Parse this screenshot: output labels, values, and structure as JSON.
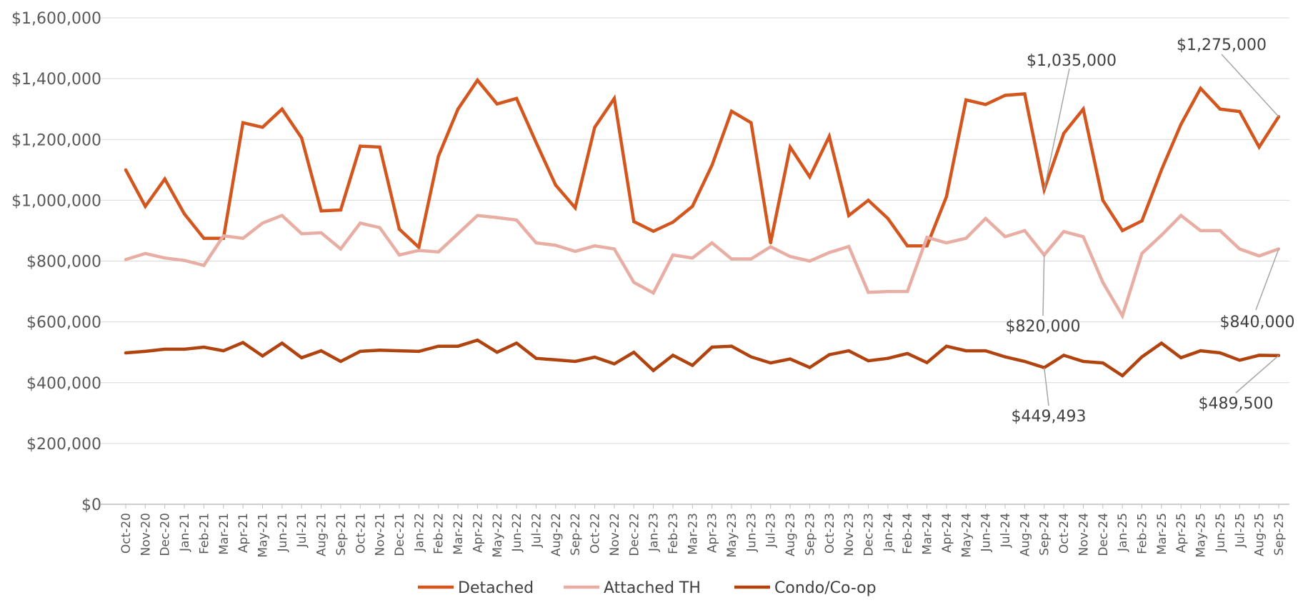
{
  "chart_data": {
    "type": "line",
    "categories": [
      "Oct-20",
      "Nov-20",
      "Dec-20",
      "Jan-21",
      "Feb-21",
      "Mar-21",
      "Apr-21",
      "May-21",
      "Jun-21",
      "Jul-21",
      "Aug-21",
      "Sep-21",
      "Oct-21",
      "Nov-21",
      "Dec-21",
      "Jan-22",
      "Feb-22",
      "Mar-22",
      "Apr-22",
      "May-22",
      "Jun-22",
      "Jul-22",
      "Aug-22",
      "Sep-22",
      "Oct-22",
      "Nov-22",
      "Dec-22",
      "Jan-23",
      "Feb-23",
      "Mar-23",
      "Apr-23",
      "May-23",
      "Jun-23",
      "Jul-23",
      "Aug-23",
      "Sep-23",
      "Oct-23",
      "Nov-23",
      "Dec-23",
      "Jan-24",
      "Feb-24",
      "Mar-24",
      "Apr-24",
      "May-24",
      "Jun-24",
      "Jul-24",
      "Aug-24",
      "Sep-24",
      "Oct-24",
      "Nov-24",
      "Dec-24",
      "Jan-25",
      "Feb-25",
      "Mar-25",
      "Apr-25",
      "May-25",
      "Jun-25",
      "Jul-25",
      "Aug-25",
      "Sep-25"
    ],
    "series": [
      {
        "name": "Detached",
        "color": "#d4561f",
        "values": [
          1100000,
          980000,
          1070000,
          955000,
          875000,
          875000,
          1255000,
          1240000,
          1300000,
          1205000,
          965000,
          968000,
          1178000,
          1175000,
          905000,
          845000,
          1145000,
          1300000,
          1395000,
          1317000,
          1335000,
          1190000,
          1050000,
          975000,
          1240000,
          1335000,
          930000,
          898000,
          928000,
          980000,
          1115000,
          1293000,
          1255000,
          860000,
          1175000,
          1077000,
          1210000,
          950000,
          1000000,
          940000,
          850000,
          850000,
          1012000,
          1330000,
          1315000,
          1345000,
          1350000,
          1035000,
          1220000,
          1300000,
          1000000,
          900000,
          932000,
          1100000,
          1250000,
          1368000,
          1300000,
          1292000,
          1175000,
          1275000
        ]
      },
      {
        "name": "Attached TH",
        "color": "#e8ada3",
        "values": [
          805000,
          825000,
          810000,
          802000,
          786000,
          883000,
          875000,
          925000,
          950000,
          890000,
          893000,
          840000,
          925000,
          910000,
          820000,
          835000,
          830000,
          890000,
          950000,
          943000,
          935000,
          860000,
          852000,
          832000,
          850000,
          840000,
          730000,
          695000,
          820000,
          810000,
          860000,
          807000,
          807000,
          847000,
          815000,
          800000,
          828000,
          848000,
          697000,
          700000,
          700000,
          878000,
          860000,
          875000,
          940000,
          880000,
          900000,
          820000,
          897000,
          880000,
          730000,
          620000,
          825000,
          885000,
          950000,
          900000,
          900000,
          840000,
          817000,
          840000
        ]
      },
      {
        "name": "Condo/Co-op",
        "color": "#b1440e",
        "values": [
          498000,
          503000,
          510000,
          510000,
          517000,
          505000,
          532000,
          488000,
          530000,
          482000,
          505000,
          470000,
          503000,
          507000,
          505000,
          503000,
          520000,
          520000,
          540000,
          500000,
          530000,
          480000,
          475000,
          470000,
          484000,
          462000,
          500000,
          440000,
          490000,
          457000,
          517000,
          520000,
          485000,
          465000,
          478000,
          450000,
          492000,
          505000,
          472000,
          480000,
          496000,
          466000,
          520000,
          505000,
          505000,
          485000,
          470000,
          449493,
          490000,
          470000,
          465000,
          423000,
          485000,
          530000,
          482000,
          505000,
          498000,
          474000,
          490000,
          489500
        ]
      }
    ],
    "ylim": [
      0,
      1600000
    ],
    "yticks": [
      "$0",
      "$200,000",
      "$400,000",
      "$600,000",
      "$800,000",
      "$1,000,000",
      "$1,200,000",
      "$1,400,000",
      "$1,600,000"
    ],
    "ytick_values": [
      0,
      200000,
      400000,
      600000,
      800000,
      1000000,
      1200000,
      1400000,
      1600000
    ],
    "grid": true,
    "legend_position": "bottom-center",
    "annotations": [
      {
        "text": "$1,035,000",
        "series": "Detached",
        "category": "Sep-24"
      },
      {
        "text": "$1,275,000",
        "series": "Detached",
        "category": "Sep-25"
      },
      {
        "text": "$820,000",
        "series": "Attached TH",
        "category": "Sep-24"
      },
      {
        "text": "$840,000",
        "series": "Attached TH",
        "category": "Sep-25"
      },
      {
        "text": "$449,493",
        "series": "Condo/Co-op",
        "category": "Sep-24"
      },
      {
        "text": "$489,500",
        "series": "Condo/Co-op",
        "category": "Sep-25"
      }
    ],
    "title": "",
    "xlabel": "",
    "ylabel": ""
  }
}
